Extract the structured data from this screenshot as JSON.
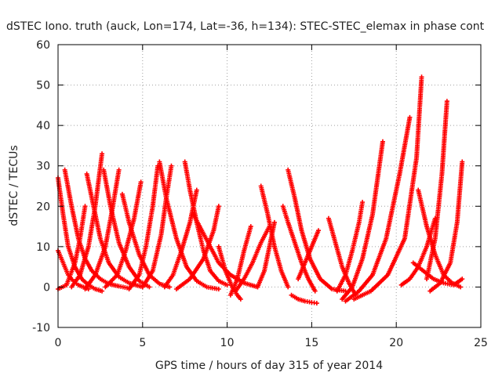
{
  "chart_data": {
    "type": "scatter",
    "title": "dSTEC Iono. truth (auck, Lon=174, Lat=-36, h=134): STEC-STEC_elemax in phase cont",
    "xlabel": "GPS time / hours of day 315 of year 2014",
    "ylabel": "dSTEC  / TECUs",
    "xlim": [
      0,
      25
    ],
    "ylim": [
      -10,
      60
    ],
    "x_ticks": [
      "0",
      "5",
      "10",
      "15",
      "20",
      "25"
    ],
    "y_ticks": [
      "-10",
      "0",
      "10",
      "20",
      "30",
      "40",
      "50",
      "60"
    ],
    "grid": true,
    "marker": "+",
    "color": "#ff0000",
    "series": [
      {
        "x": [
          0.0,
          0.3,
          0.6,
          1.0,
          1.4,
          1.8,
          2.2,
          2.6
        ],
        "y": [
          27,
          18,
          10,
          5,
          2,
          0.5,
          -0.5,
          -1
        ]
      },
      {
        "x": [
          0.0,
          0.3,
          0.6,
          0.9,
          1.2,
          1.5,
          1.8
        ],
        "y": [
          9,
          6,
          3,
          1.5,
          0.5,
          0,
          -0.5
        ]
      },
      {
        "x": [
          0.4,
          0.8,
          1.2,
          1.6,
          2.0,
          2.5,
          3.0,
          3.6,
          4.2
        ],
        "y": [
          29,
          20,
          12,
          7,
          4,
          2,
          0.8,
          0.2,
          -0.3
        ]
      },
      {
        "x": [
          0.0,
          0.5,
          1.0,
          1.3,
          1.6
        ],
        "y": [
          -0.5,
          0.5,
          6,
          12,
          20
        ]
      },
      {
        "x": [
          1.7,
          2.1,
          2.5,
          3.0,
          3.6,
          4.2,
          5.0
        ],
        "y": [
          28,
          20,
          12,
          6,
          2.5,
          1,
          0
        ]
      },
      {
        "x": [
          0.8,
          1.3,
          1.8,
          2.2,
          2.6
        ],
        "y": [
          0,
          3,
          10,
          20,
          33
        ]
      },
      {
        "x": [
          2.7,
          3.1,
          3.6,
          4.2,
          4.8,
          5.4
        ],
        "y": [
          29,
          20,
          11,
          5,
          1.5,
          0
        ]
      },
      {
        "x": [
          1.6,
          2.2,
          2.8,
          3.2,
          3.6
        ],
        "y": [
          -0.5,
          3,
          10,
          19,
          29
        ]
      },
      {
        "x": [
          3.8,
          4.2,
          4.8,
          5.4,
          6.0,
          6.6
        ],
        "y": [
          23,
          16,
          8,
          3,
          0.8,
          0
        ]
      },
      {
        "x": [
          2.8,
          3.5,
          4.0,
          4.5,
          4.9
        ],
        "y": [
          0,
          3,
          9,
          17,
          26
        ]
      },
      {
        "x": [
          4.2,
          4.8,
          5.2,
          5.6,
          5.9
        ],
        "y": [
          -0.5,
          3,
          10,
          20,
          30
        ]
      },
      {
        "x": [
          6.0,
          6.4,
          7.0,
          7.6,
          8.2,
          8.8,
          9.5
        ],
        "y": [
          31,
          22,
          12,
          5,
          1.5,
          0,
          -0.5
        ]
      },
      {
        "x": [
          5.0,
          5.6,
          6.1,
          6.4,
          6.7
        ],
        "y": [
          0,
          4,
          13,
          22,
          30
        ]
      },
      {
        "x": [
          7.5,
          7.8,
          8.2,
          8.6,
          9.0,
          9.5,
          10.0
        ],
        "y": [
          31,
          24,
          16,
          9,
          4,
          1.5,
          0.5
        ]
      },
      {
        "x": [
          6.3,
          6.8,
          7.3,
          7.8,
          8.2
        ],
        "y": [
          0,
          3,
          9,
          16,
          24
        ]
      },
      {
        "x": [
          8.0,
          8.5,
          9.0,
          9.5,
          10.2,
          11.0,
          11.8
        ],
        "y": [
          18,
          14,
          10,
          6,
          3,
          1,
          0
        ]
      },
      {
        "x": [
          7.0,
          7.8,
          8.6,
          9.2,
          9.5
        ],
        "y": [
          -0.5,
          2,
          7,
          14,
          20
        ]
      },
      {
        "x": [
          9.5,
          9.9,
          10.3,
          10.6,
          10.8
        ],
        "y": [
          10,
          4,
          0,
          -2,
          -3
        ]
      },
      {
        "x": [
          10.2,
          10.6,
          11.0,
          11.4
        ],
        "y": [
          -2,
          2,
          9,
          15
        ]
      },
      {
        "x": [
          10.5,
          11.0,
          11.5,
          12.0,
          12.5
        ],
        "y": [
          -1,
          2,
          6,
          11,
          15
        ]
      },
      {
        "x": [
          12.0,
          12.4,
          12.8,
          13.2,
          13.6
        ],
        "y": [
          25,
          18,
          10,
          4,
          0
        ]
      },
      {
        "x": [
          11.8,
          12.2,
          12.5,
          12.8
        ],
        "y": [
          0,
          4,
          10,
          16
        ]
      },
      {
        "x": [
          13.6,
          14.0,
          14.4,
          14.9,
          15.5,
          16.2,
          17.0
        ],
        "y": [
          29,
          22,
          14,
          7,
          2,
          -0.5,
          -1
        ]
      },
      {
        "x": [
          13.3,
          13.6,
          14.0,
          14.4,
          14.8,
          15.2
        ],
        "y": [
          20,
          16,
          11,
          6,
          2,
          -1
        ]
      },
      {
        "x": [
          14.2,
          14.6,
          15.0,
          15.4
        ],
        "y": [
          2,
          6,
          10,
          14
        ]
      },
      {
        "x": [
          13.8,
          14.2,
          14.6,
          15.0,
          15.3
        ],
        "y": [
          -2,
          -3,
          -3.5,
          -3.8,
          -4
        ]
      },
      {
        "x": [
          16.0,
          16.4,
          16.8,
          17.2,
          17.6
        ],
        "y": [
          17,
          11,
          5,
          1,
          -2
        ]
      },
      {
        "x": [
          16.5,
          17.0,
          17.4,
          17.8,
          18.0
        ],
        "y": [
          -1,
          3,
          9,
          16,
          21
        ]
      },
      {
        "x": [
          16.8,
          17.4,
          18.0,
          18.6,
          19.2
        ],
        "y": [
          -3,
          0,
          7,
          18,
          36
        ]
      },
      {
        "x": [
          17.0,
          17.8,
          18.6,
          19.4,
          20.2,
          20.8
        ],
        "y": [
          -3.5,
          -1,
          3,
          12,
          28,
          42
        ]
      },
      {
        "x": [
          17.5,
          18.5,
          19.5,
          20.5,
          21.2,
          21.5
        ],
        "y": [
          -3,
          -1,
          3,
          12,
          32,
          52
        ]
      },
      {
        "x": [
          21.3,
          21.8,
          22.3,
          22.8,
          23.3,
          23.8
        ],
        "y": [
          24,
          15,
          8,
          3,
          1,
          0
        ]
      },
      {
        "x": [
          20.3,
          20.8,
          21.3,
          21.8,
          22.3
        ],
        "y": [
          0.5,
          2,
          5,
          10,
          17
        ]
      },
      {
        "x": [
          21.8,
          22.3,
          22.7,
          23.0
        ],
        "y": [
          2,
          12,
          28,
          46
        ]
      },
      {
        "x": [
          22.0,
          22.6,
          23.2,
          23.6,
          23.9
        ],
        "y": [
          -1,
          1,
          6,
          16,
          31
        ]
      },
      {
        "x": [
          21.0,
          21.6,
          22.2,
          22.8,
          23.4,
          23.9
        ],
        "y": [
          6,
          4,
          2,
          1,
          0.5,
          2
        ]
      }
    ]
  }
}
